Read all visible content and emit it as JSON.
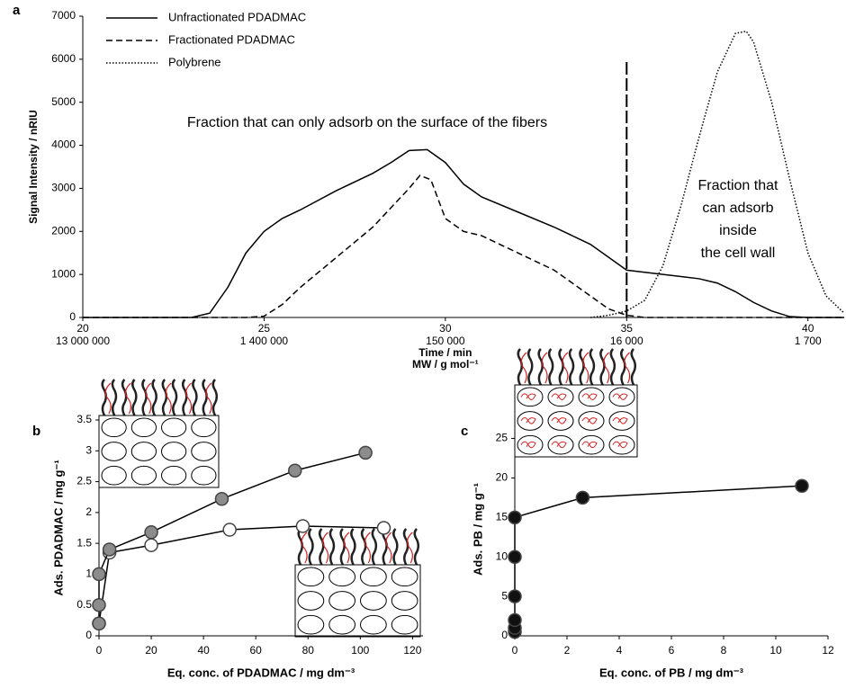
{
  "chart_data": [
    {
      "type": "line",
      "panel": "a",
      "ylabel": "Signal Intensity  / nRIU",
      "xlabel": "Time / min",
      "xlabel2": "MW / g mol⁻¹",
      "xlim": [
        20,
        41
      ],
      "ylim": [
        0,
        7000
      ],
      "xticks": [
        20,
        25,
        30,
        35,
        40
      ],
      "xtick_mw_labels": [
        "13 000 000",
        "1 400 000",
        "150 000",
        "16 000",
        "1 700"
      ],
      "yticks": [
        0,
        1000,
        2000,
        3000,
        4000,
        5000,
        6000,
        7000
      ],
      "legend": "top-left",
      "annotation": "Fraction that can only adsorb on the surface of the fibers",
      "annotation2_lines": [
        "Fraction that",
        "can adsorb",
        "inside",
        "the cell wall"
      ],
      "reference_line": {
        "x": 35,
        "y_end": 6000
      },
      "series": [
        {
          "name": "Unfractionated PDADMAC",
          "color": "#000000",
          "dash": "solid",
          "x": [
            20,
            22.5,
            23,
            23.5,
            24,
            24.5,
            25,
            25.5,
            26,
            27,
            28,
            28.5,
            29,
            29.5,
            30,
            30.5,
            31,
            32,
            33,
            34,
            34.5,
            35,
            36,
            37,
            37.5,
            38,
            38.5,
            39,
            39.5,
            40,
            41
          ],
          "values": [
            0,
            0,
            0,
            100,
            700,
            1500,
            2000,
            2300,
            2500,
            2950,
            3350,
            3600,
            3880,
            3900,
            3600,
            3100,
            2800,
            2450,
            2100,
            1700,
            1400,
            1100,
            1000,
            900,
            800,
            600,
            350,
            150,
            20,
            0,
            0
          ]
        },
        {
          "name": "Fractionated PDADMAC",
          "color": "#000000",
          "dash": "dashed",
          "x": [
            20,
            24.5,
            25,
            25.5,
            26,
            27,
            28,
            29,
            29.3,
            29.6,
            30,
            30.5,
            31,
            32,
            33,
            34,
            34.5,
            35,
            35.5,
            41
          ],
          "values": [
            0,
            0,
            30,
            300,
            700,
            1400,
            2100,
            3000,
            3300,
            3200,
            2300,
            2000,
            1900,
            1500,
            1100,
            500,
            200,
            50,
            0,
            0
          ]
        },
        {
          "name": "Polybrene",
          "color": "#000000",
          "dash": "dotted",
          "x": [
            34,
            34.5,
            35,
            35.5,
            36,
            36.5,
            37,
            37.5,
            38,
            38.3,
            38.5,
            39,
            39.5,
            40,
            40.5,
            41
          ],
          "values": [
            0,
            50,
            150,
            400,
            1200,
            2600,
            4200,
            5700,
            6600,
            6650,
            6400,
            5000,
            3200,
            1500,
            500,
            100
          ]
        }
      ]
    },
    {
      "type": "scatter",
      "panel": "b",
      "connect": true,
      "ylabel": "Ads. PDADMAC / mg g⁻¹",
      "xlabel": "Eq. conc. of PDADMAC / mg dm⁻³",
      "xlim": [
        0,
        124
      ],
      "ylim": [
        0,
        3.5
      ],
      "xticks": [
        0,
        20,
        40,
        60,
        80,
        100,
        120
      ],
      "yticks": [
        0,
        0.5,
        1,
        1.5,
        2,
        2.5,
        3,
        3.5
      ],
      "series": [
        {
          "color": "#ffffff",
          "x": [
            0,
            4,
            20,
            50,
            78,
            109
          ],
          "values": [
            0.2,
            1.35,
            1.47,
            1.72,
            1.78,
            1.75
          ]
        },
        {
          "color": "#8c8c8c",
          "x": [
            0,
            0,
            0,
            4,
            20,
            47,
            75,
            102
          ],
          "values": [
            0.2,
            0.5,
            1.0,
            1.4,
            1.68,
            2.22,
            2.68,
            2.97
          ]
        }
      ]
    },
    {
      "type": "scatter",
      "panel": "c",
      "connect": true,
      "ylabel": "Ads. PB / mg g⁻¹",
      "xlabel": "Eq. conc. of PB / mg dm⁻³",
      "xlim": [
        0,
        12
      ],
      "ylim": [
        0,
        27
      ],
      "xticks": [
        0,
        2,
        4,
        6,
        8,
        10,
        12
      ],
      "yticks": [
        0,
        5,
        10,
        15,
        20,
        25
      ],
      "series": [
        {
          "color": "#111111",
          "x": [
            0,
            0,
            0,
            0,
            0,
            0,
            2.6,
            11
          ],
          "values": [
            0.5,
            1,
            2,
            5,
            10,
            15,
            17.5,
            19
          ]
        }
      ]
    }
  ]
}
